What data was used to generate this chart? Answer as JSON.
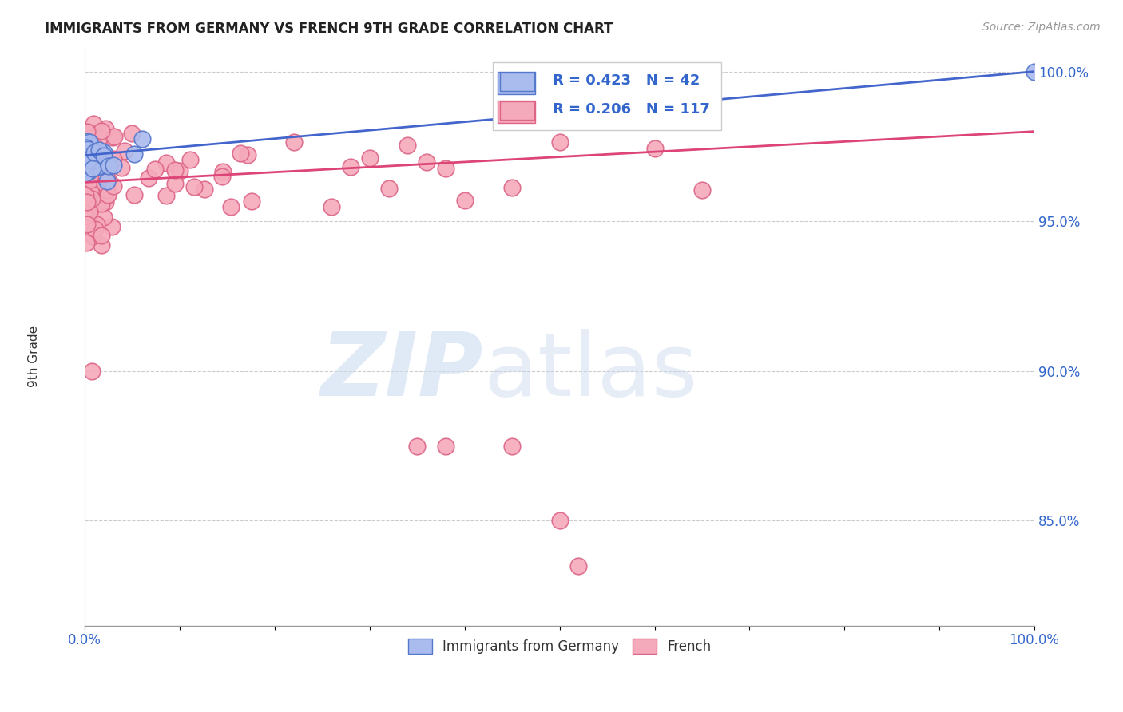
{
  "title": "IMMIGRANTS FROM GERMANY VS FRENCH 9TH GRADE CORRELATION CHART",
  "source": "Source: ZipAtlas.com",
  "ylabel": "9th Grade",
  "xlim": [
    0.0,
    1.0
  ],
  "ylim": [
    0.815,
    1.008
  ],
  "ytick_labels": [
    "85.0%",
    "90.0%",
    "95.0%",
    "100.0%"
  ],
  "ytick_values": [
    0.85,
    0.9,
    0.95,
    1.0
  ],
  "germany_color": "#aabbee",
  "french_color": "#f5aabb",
  "germany_edge_color": "#5577cc",
  "french_edge_color": "#dd6688",
  "trendline_germany_color": "#4466cc",
  "trendline_french_color": "#dd4477",
  "legend_r_germany": "R = 0.423",
  "legend_n_germany": "N = 42",
  "legend_r_french": "R = 0.206",
  "legend_n_french": "N = 117",
  "watermark_zip": "ZIP",
  "watermark_atlas": "atlas"
}
